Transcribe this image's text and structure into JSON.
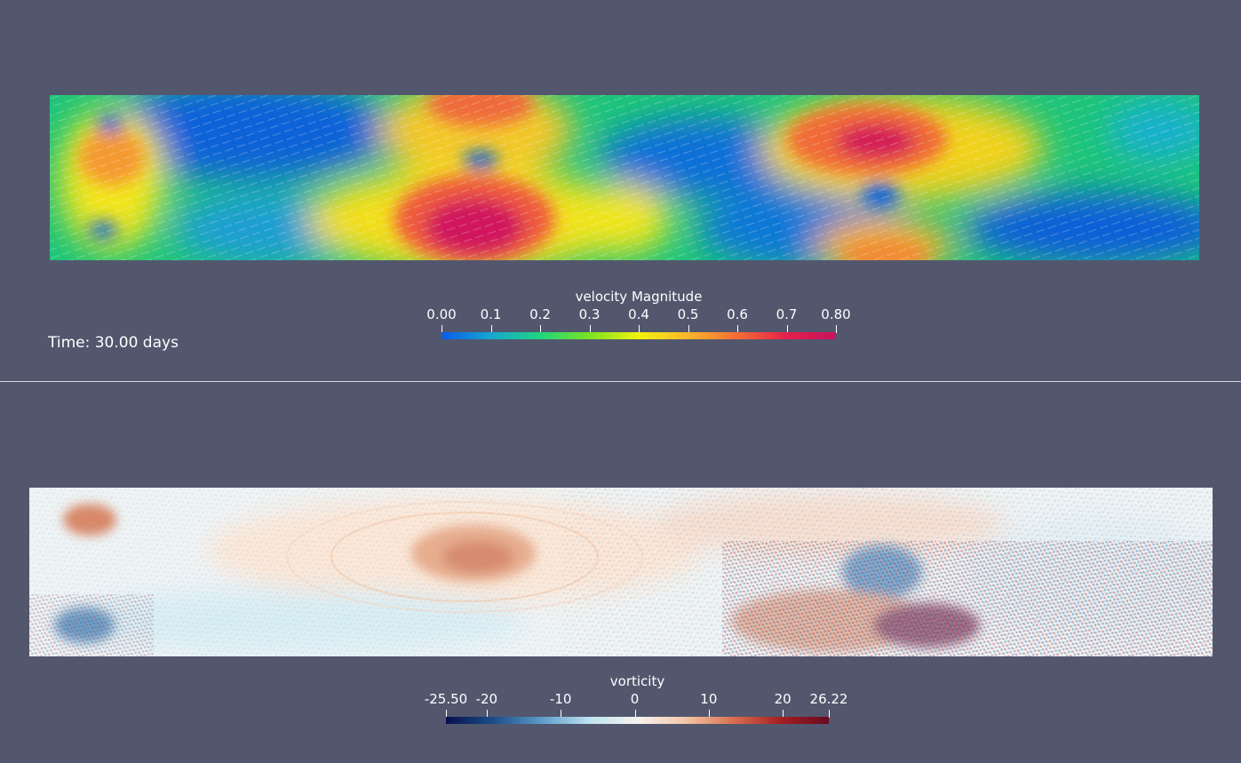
{
  "top_view": {
    "time_label": "Time: 30.00 days",
    "colorbar": {
      "title": "velocity Magnitude",
      "range": [
        0.0,
        0.8
      ],
      "ticks": [
        {
          "label": "0.00",
          "value": 0.0
        },
        {
          "label": "0.1",
          "value": 0.1
        },
        {
          "label": "0.2",
          "value": 0.2
        },
        {
          "label": "0.3",
          "value": 0.3
        },
        {
          "label": "0.4",
          "value": 0.4
        },
        {
          "label": "0.5",
          "value": 0.5
        },
        {
          "label": "0.6",
          "value": 0.6
        },
        {
          "label": "0.7",
          "value": 0.7
        },
        {
          "label": "0.80",
          "value": 0.8
        }
      ],
      "colormap": [
        "#0a5ce6",
        "#17a6d1",
        "#1ed57f",
        "#7be320",
        "#f2f20f",
        "#f9b52c",
        "#f56c35",
        "#e4204a",
        "#c8125e"
      ]
    }
  },
  "bottom_view": {
    "colorbar": {
      "title": "vorticity",
      "range": [
        -25.5,
        26.22
      ],
      "ticks": [
        {
          "label": "-25.50",
          "value": -25.5
        },
        {
          "label": "-20",
          "value": -20
        },
        {
          "label": "-10",
          "value": -10
        },
        {
          "label": "0",
          "value": 0
        },
        {
          "label": "10",
          "value": 10
        },
        {
          "label": "20",
          "value": 20
        },
        {
          "label": "26.22",
          "value": 26.22
        }
      ],
      "colormap": [
        "#08104a",
        "#1c4d8c",
        "#5c9cc8",
        "#bfe3ef",
        "#f6f4f0",
        "#f4c7a8",
        "#d8704f",
        "#a41e22",
        "#680a22"
      ]
    }
  }
}
